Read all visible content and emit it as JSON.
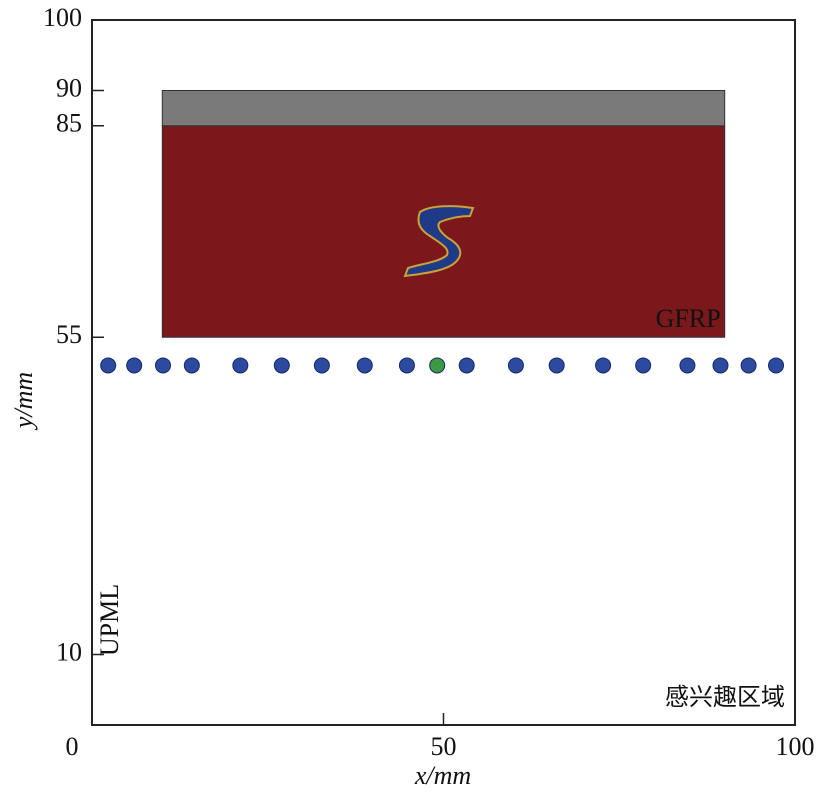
{
  "chart_data": {
    "type": "scatter",
    "xlabel": "x/mm",
    "ylabel": "y/mm",
    "xlim": [
      0,
      100
    ],
    "ylim": [
      0,
      100
    ],
    "xticks": [
      0,
      50,
      100
    ],
    "yticks": [
      10,
      55,
      85,
      90,
      100
    ],
    "x": [
      2.3,
      6.0,
      10.1,
      14.2,
      21.1,
      27.0,
      32.7,
      38.8,
      44.8,
      49.1,
      53.3,
      60.3,
      66.1,
      72.7,
      78.4,
      84.7,
      89.4,
      93.4,
      97.3
    ],
    "values": [
      51,
      51,
      51,
      51,
      51,
      51,
      51,
      51,
      51,
      51,
      51,
      51,
      51,
      51,
      51,
      51,
      51,
      51,
      51
    ],
    "colors": [
      "#2c4aa0",
      "#2c4aa0",
      "#2c4aa0",
      "#2c4aa0",
      "#2c4aa0",
      "#2c4aa0",
      "#2c4aa0",
      "#2c4aa0",
      "#2c4aa0",
      "#3a9a45",
      "#2c4aa0",
      "#2c4aa0",
      "#2c4aa0",
      "#2c4aa0",
      "#2c4aa0",
      "#2c4aa0",
      "#2c4aa0",
      "#2c4aa0",
      "#2c4aa0"
    ],
    "regions": [
      {
        "label": "GFRP",
        "xlim": [
          10,
          90
        ],
        "ylim": [
          55,
          85
        ],
        "color": "#7b181c"
      },
      {
        "xlim": [
          10,
          90
        ],
        "ylim": [
          85,
          90
        ],
        "color": "#7a7a7a"
      }
    ],
    "annotations": [
      "UPML",
      "感兴趣区域"
    ]
  }
}
